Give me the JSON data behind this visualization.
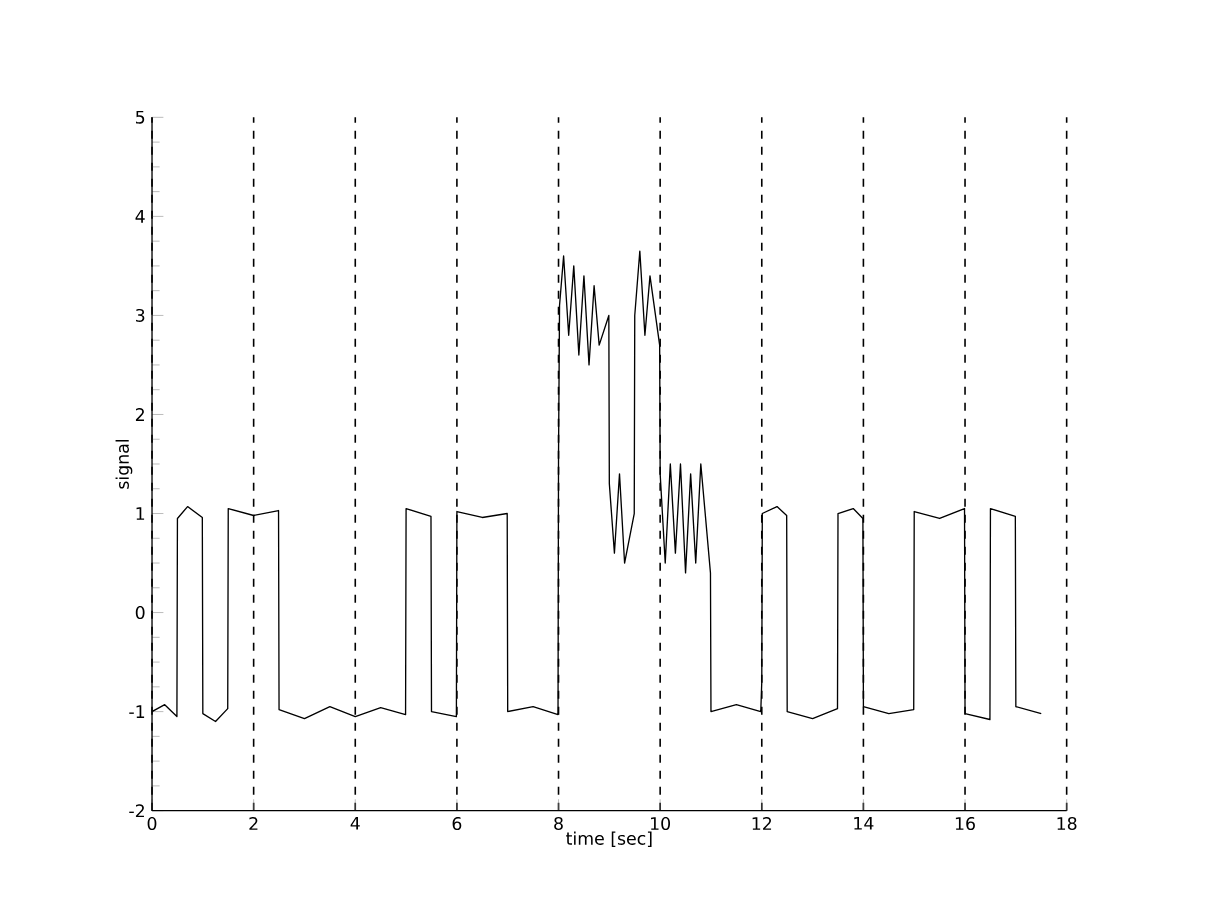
{
  "chart_data": {
    "type": "line",
    "xlabel": "time [sec]",
    "ylabel": "signal",
    "xlim": [
      0,
      18
    ],
    "ylim": [
      -2,
      5
    ],
    "xticks": [
      0,
      2,
      4,
      6,
      8,
      10,
      12,
      14,
      16,
      18
    ],
    "yticks": [
      -2,
      -1,
      0,
      1,
      2,
      3,
      4,
      5
    ],
    "grid": "x",
    "marker": "none",
    "line_style": "solid",
    "series": [
      {
        "color": "#000000",
        "x": [
          0,
          0.25,
          0.49,
          0.5,
          0.7,
          0.99,
          1.0,
          1.25,
          1.49,
          1.5,
          2.0,
          2.49,
          2.5,
          3.0,
          3.5,
          4.0,
          4.5,
          4.99,
          5.0,
          5.49,
          5.5,
          5.99,
          6.0,
          6.5,
          6.99,
          7.0,
          7.5,
          7.99,
          8.0,
          8.02,
          8.1,
          8.2,
          8.3,
          8.4,
          8.5,
          8.6,
          8.7,
          8.8,
          8.99,
          9.0,
          9.1,
          9.2,
          9.3,
          9.49,
          9.5,
          9.6,
          9.7,
          9.8,
          9.99,
          10.0,
          10.1,
          10.2,
          10.3,
          10.4,
          10.5,
          10.6,
          10.7,
          10.8,
          10.99,
          11.0,
          11.5,
          11.98,
          12.0,
          12.01,
          12.3,
          12.49,
          12.5,
          13.0,
          13.49,
          13.5,
          13.8,
          13.99,
          14.0,
          14.5,
          14.99,
          15.0,
          15.5,
          15.99,
          16.0,
          16.49,
          16.5,
          16.99,
          17.0,
          17.5
        ],
        "values": [
          -1.0,
          -0.93,
          -1.05,
          0.95,
          1.07,
          0.96,
          -1.02,
          -1.1,
          -0.97,
          1.05,
          0.98,
          1.03,
          -0.98,
          -1.07,
          -0.95,
          -1.05,
          -0.96,
          -1.03,
          1.05,
          0.97,
          -1.0,
          -1.05,
          1.02,
          0.96,
          1.0,
          -1.0,
          -0.95,
          -1.03,
          1.6,
          3.1,
          3.6,
          2.8,
          3.5,
          2.6,
          3.4,
          2.5,
          3.3,
          2.7,
          3.0,
          1.3,
          0.6,
          1.4,
          0.5,
          1.0,
          3.0,
          3.65,
          2.8,
          3.4,
          2.7,
          1.4,
          0.5,
          1.5,
          0.6,
          1.5,
          0.4,
          1.4,
          0.5,
          1.5,
          0.4,
          -1.0,
          -0.93,
          -1.0,
          -0.7,
          1.0,
          1.07,
          0.98,
          -1.0,
          -1.07,
          -0.97,
          1.0,
          1.05,
          0.95,
          -0.95,
          -1.02,
          -0.98,
          1.02,
          0.95,
          1.05,
          -1.02,
          -1.08,
          1.05,
          0.97,
          -0.95,
          -1.02
        ]
      }
    ]
  }
}
